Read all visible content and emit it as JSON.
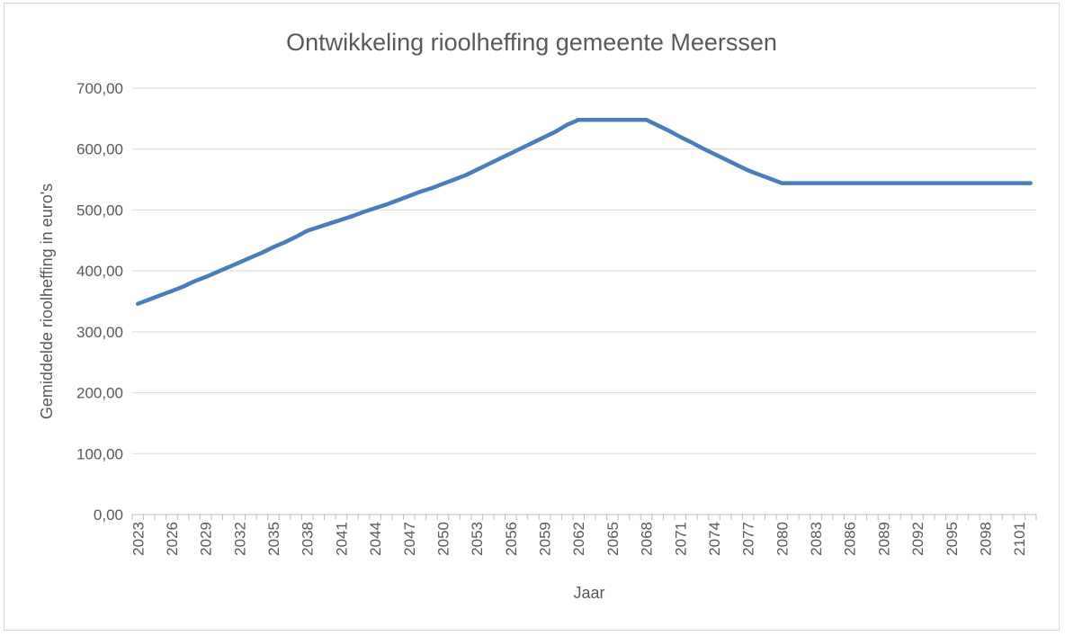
{
  "chart_data": {
    "type": "line",
    "title": "Ontwikkeling rioolheffing gemeente Meerssen",
    "xlabel": "Jaar",
    "ylabel": "Gemiddelde rioolheffing in  euro's",
    "ylim": [
      0,
      700
    ],
    "y_ticks": [
      "0,00",
      "100,00",
      "200,00",
      "300,00",
      "400,00",
      "500,00",
      "600,00",
      "700,00"
    ],
    "x_tick_labels": [
      "2023",
      "2026",
      "2029",
      "2032",
      "2035",
      "2038",
      "2041",
      "2044",
      "2047",
      "2050",
      "2053",
      "2056",
      "2059",
      "2062",
      "2065",
      "2068",
      "2071",
      "2074",
      "2077",
      "2080",
      "2083",
      "2086",
      "2089",
      "2092",
      "2095",
      "2098",
      "2101"
    ],
    "grid": "horizontal",
    "legend": "none",
    "series_color": "#4a7ebb",
    "x": [
      2023,
      2024,
      2025,
      2026,
      2027,
      2028,
      2029,
      2030,
      2031,
      2032,
      2033,
      2034,
      2035,
      2036,
      2037,
      2038,
      2039,
      2040,
      2041,
      2042,
      2043,
      2044,
      2045,
      2046,
      2047,
      2048,
      2049,
      2050,
      2051,
      2052,
      2053,
      2054,
      2055,
      2056,
      2057,
      2058,
      2059,
      2060,
      2061,
      2062,
      2063,
      2064,
      2065,
      2066,
      2067,
      2068,
      2069,
      2070,
      2071,
      2072,
      2073,
      2074,
      2075,
      2076,
      2077,
      2078,
      2079,
      2080,
      2081,
      2082,
      2083,
      2084,
      2085,
      2086,
      2087,
      2088,
      2089,
      2090,
      2091,
      2092,
      2093,
      2094,
      2095,
      2096,
      2097,
      2098,
      2099,
      2100,
      2101,
      2102
    ],
    "values": [
      346,
      353,
      360,
      367,
      374,
      383,
      390,
      398,
      406,
      414,
      422,
      430,
      439,
      447,
      456,
      466,
      472,
      478,
      484,
      490,
      497,
      503,
      509,
      516,
      523,
      530,
      536,
      543,
      550,
      557,
      566,
      575,
      584,
      593,
      602,
      611,
      620,
      629,
      640,
      648,
      648,
      648,
      648,
      648,
      648,
      648,
      639,
      630,
      620,
      611,
      601,
      592,
      583,
      574,
      565,
      558,
      551,
      544,
      544,
      544,
      544,
      544,
      544,
      544,
      544,
      544,
      544,
      544,
      544,
      544,
      544,
      544,
      544,
      544,
      544,
      544,
      544,
      544,
      544,
      544
    ]
  }
}
